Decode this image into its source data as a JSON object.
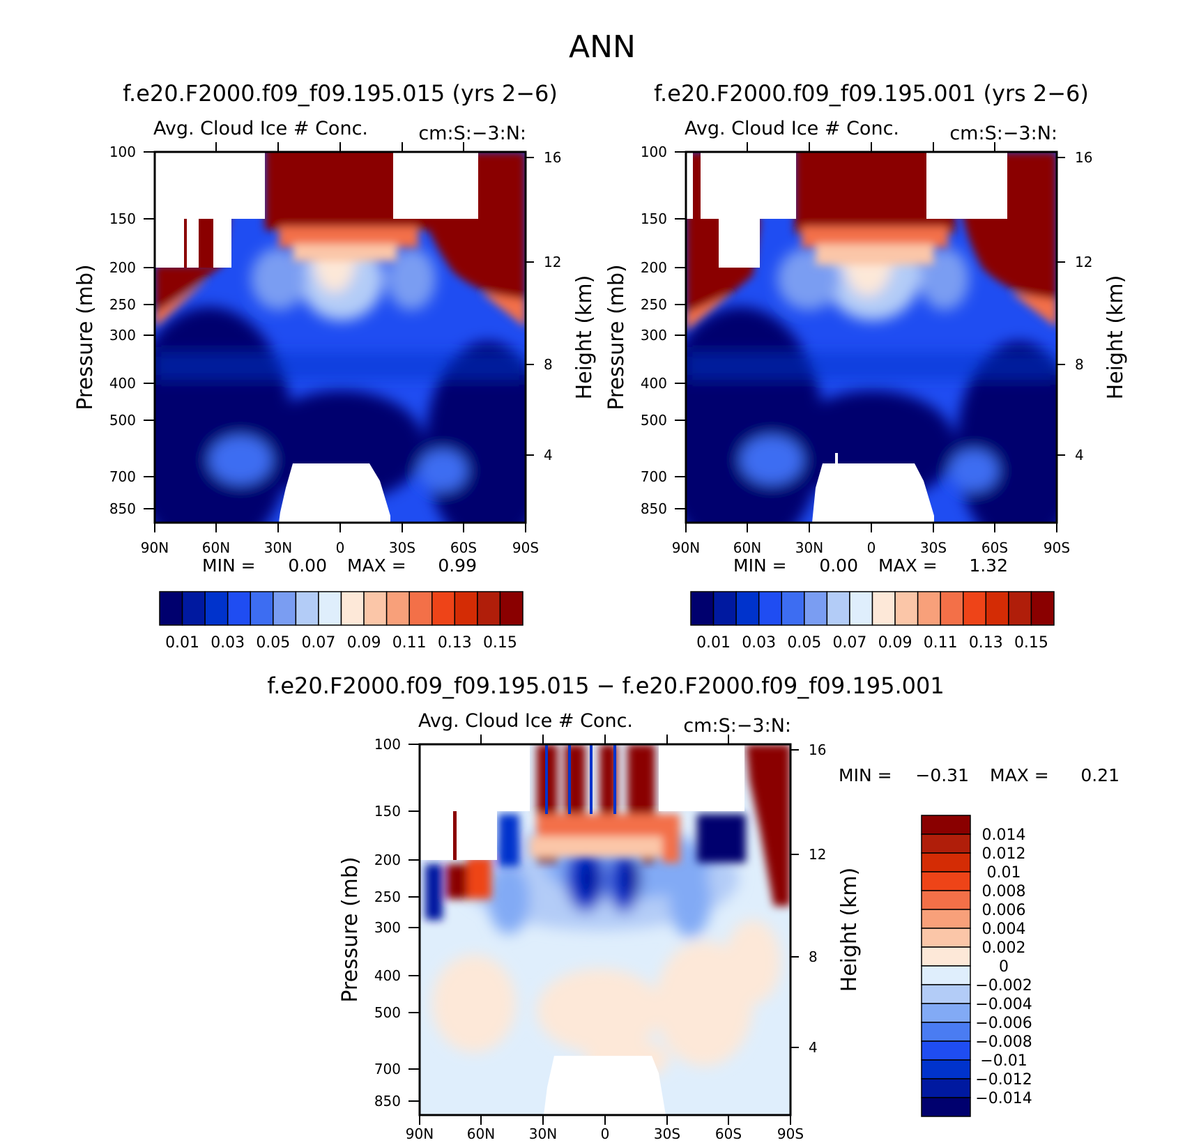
{
  "main_title": "ANN",
  "colors": {
    "sequential": [
      "#00006e",
      "#0019a0",
      "#0033cc",
      "#1f4df2",
      "#3d6df2",
      "#7a9df2",
      "#b3ccf7",
      "#dfeefc",
      "#fde8d8",
      "#fbc6a8",
      "#f8a07a",
      "#f37048",
      "#ee4418",
      "#d42c05",
      "#b01e0a",
      "#8a0000"
    ],
    "diverging": [
      "#00006e",
      "#0019a0",
      "#0033cc",
      "#1f4df2",
      "#4a7cf2",
      "#82aaf5",
      "#b3ccf7",
      "#dfeefc",
      "#fde8d8",
      "#fbc6a8",
      "#f8a07a",
      "#f37048",
      "#ee4418",
      "#d42c05",
      "#b01e0a",
      "#8a0000"
    ]
  },
  "chart_data": [
    {
      "type": "heatmap",
      "title": "f.e20.F2000.f09_f09.195.015 (yrs 2−6)",
      "subtitle_left": "Avg. Cloud Ice # Conc.",
      "subtitle_right": "cm:S:−3:N:",
      "ylabel": "Pressure (mb)",
      "ylabel_right": "Height (km)",
      "x_ticks": [
        "90N",
        "60N",
        "30N",
        "0",
        "30S",
        "60S",
        "90S"
      ],
      "y_ticks": [
        "100",
        "150",
        "200",
        "250",
        "300",
        "400",
        "500",
        "700",
        "850"
      ],
      "y_right_ticks": [
        "16",
        "12",
        "8",
        "4"
      ],
      "stats": {
        "min_label": "MIN =",
        "min": "0.00",
        "max_label": "MAX =",
        "max": "0.99"
      },
      "contour_levels": [
        "0.01",
        "0.03",
        "0.05",
        "0.07",
        "0.09",
        "0.11",
        "0.13",
        "0.15"
      ],
      "xlim": [
        -90,
        90
      ],
      "ylim": [
        100,
        1000
      ]
    },
    {
      "type": "heatmap",
      "title": "f.e20.F2000.f09_f09.195.001 (yrs 2−6)",
      "subtitle_left": "Avg. Cloud Ice # Conc.",
      "subtitle_right": "cm:S:−3:N:",
      "ylabel": "Pressure (mb)",
      "ylabel_right": "Height (km)",
      "x_ticks": [
        "90N",
        "60N",
        "30N",
        "0",
        "30S",
        "60S",
        "90S"
      ],
      "y_ticks": [
        "100",
        "150",
        "200",
        "250",
        "300",
        "400",
        "500",
        "700",
        "850"
      ],
      "y_right_ticks": [
        "16",
        "12",
        "8",
        "4"
      ],
      "stats": {
        "min_label": "MIN =",
        "min": "0.00",
        "max_label": "MAX =",
        "max": "1.32"
      },
      "contour_levels": [
        "0.01",
        "0.03",
        "0.05",
        "0.07",
        "0.09",
        "0.11",
        "0.13",
        "0.15"
      ],
      "xlim": [
        -90,
        90
      ],
      "ylim": [
        100,
        1000
      ]
    },
    {
      "type": "heatmap",
      "title": "f.e20.F2000.f09_f09.195.015 − f.e20.F2000.f09_f09.195.001",
      "subtitle_left": "Avg. Cloud Ice # Conc.",
      "subtitle_right": "cm:S:−3:N:",
      "ylabel": "Pressure (mb)",
      "ylabel_right": "Height (km)",
      "x_ticks": [
        "90N",
        "60N",
        "30N",
        "0",
        "30S",
        "60S",
        "90S"
      ],
      "y_ticks": [
        "100",
        "150",
        "200",
        "250",
        "300",
        "400",
        "500",
        "700",
        "850"
      ],
      "y_right_ticks": [
        "16",
        "12",
        "8",
        "4"
      ],
      "stats": {
        "min_label": "MIN =",
        "min": "−0.31",
        "max_label": "MAX =",
        "max": "0.21"
      },
      "contour_levels": [
        "0.014",
        "0.012",
        "0.01",
        "0.008",
        "0.006",
        "0.004",
        "0.002",
        "0",
        "−0.002",
        "−0.004",
        "−0.006",
        "−0.008",
        "−0.01",
        "−0.012",
        "−0.014"
      ],
      "xlim": [
        -90,
        90
      ],
      "ylim": [
        100,
        1000
      ]
    }
  ]
}
